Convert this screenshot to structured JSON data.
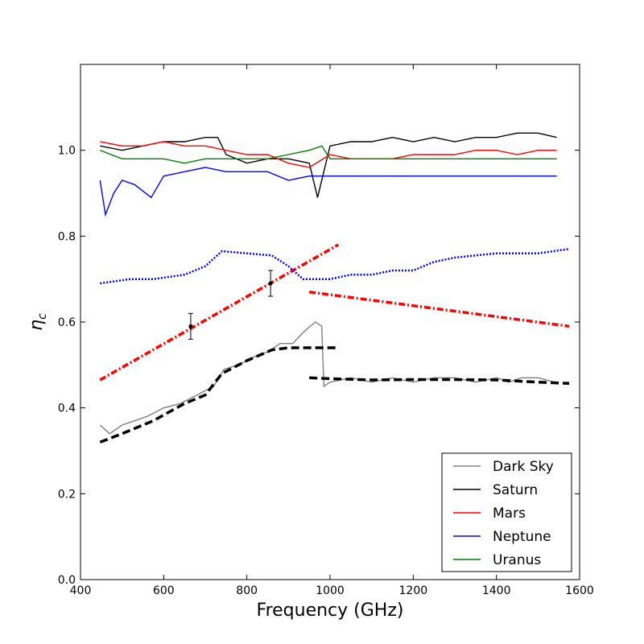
{
  "chart_data": {
    "type": "line",
    "xlabel": "Frequency (GHz)",
    "ylabel": "η_c",
    "xlim": [
      400,
      1600
    ],
    "ylim": [
      0.0,
      1.2
    ],
    "xticks": [
      400,
      600,
      800,
      1000,
      1200,
      1400,
      1600
    ],
    "yticks": [
      0.0,
      0.2,
      0.4,
      0.6,
      0.8,
      1.0
    ],
    "xtick_labels": [
      "400",
      "600",
      "800",
      "1000",
      "1200",
      "1400",
      "1600"
    ],
    "ytick_labels": [
      "0.0",
      "0.2",
      "0.4",
      "0.6",
      "0.8",
      "1.0"
    ],
    "legend_position": "lower-right",
    "series": [
      {
        "name": "Dark Sky",
        "color": "#808080",
        "x": [
          447,
          470,
          500,
          530,
          560,
          600,
          640,
          680,
          720,
          745,
          780,
          820,
          850,
          880,
          910,
          940,
          965,
          980,
          985,
          1000,
          1050,
          1100,
          1150,
          1200,
          1250,
          1300,
          1350,
          1400,
          1430,
          1460,
          1500,
          1540
        ],
        "y": [
          0.36,
          0.34,
          0.36,
          0.37,
          0.38,
          0.4,
          0.41,
          0.43,
          0.45,
          0.49,
          0.5,
          0.52,
          0.53,
          0.55,
          0.55,
          0.58,
          0.6,
          0.59,
          0.45,
          0.46,
          0.47,
          0.46,
          0.47,
          0.46,
          0.47,
          0.47,
          0.46,
          0.47,
          0.46,
          0.47,
          0.47,
          0.46
        ]
      },
      {
        "name": "Saturn",
        "color": "#000000",
        "x": [
          447,
          500,
          550,
          600,
          650,
          700,
          730,
          750,
          800,
          850,
          900,
          950,
          970,
          1000,
          1050,
          1100,
          1150,
          1200,
          1250,
          1300,
          1350,
          1400,
          1450,
          1500,
          1545
        ],
        "y": [
          1.01,
          1.0,
          1.01,
          1.02,
          1.02,
          1.03,
          1.03,
          0.99,
          0.97,
          0.98,
          0.98,
          0.97,
          0.89,
          1.01,
          1.02,
          1.02,
          1.03,
          1.02,
          1.03,
          1.02,
          1.03,
          1.03,
          1.04,
          1.04,
          1.03
        ]
      },
      {
        "name": "Mars",
        "color": "#ff0000",
        "x": [
          447,
          500,
          550,
          600,
          650,
          700,
          750,
          800,
          850,
          900,
          950,
          1000,
          1050,
          1100,
          1150,
          1200,
          1250,
          1300,
          1350,
          1400,
          1450,
          1500,
          1545
        ],
        "y": [
          1.02,
          1.01,
          1.01,
          1.02,
          1.01,
          1.01,
          1.0,
          0.99,
          0.99,
          0.97,
          0.96,
          0.99,
          0.98,
          0.98,
          0.98,
          0.99,
          0.99,
          0.99,
          1.0,
          1.0,
          0.99,
          1.0,
          1.0
        ]
      },
      {
        "name": "Neptune",
        "color": "#0000ff",
        "x": [
          447,
          460,
          480,
          500,
          530,
          570,
          600,
          650,
          700,
          750,
          800,
          850,
          900,
          950,
          1000,
          1050,
          1100,
          1150,
          1200,
          1250,
          1300,
          1350,
          1400,
          1450,
          1500,
          1545
        ],
        "y": [
          0.93,
          0.85,
          0.9,
          0.93,
          0.92,
          0.89,
          0.94,
          0.95,
          0.96,
          0.95,
          0.95,
          0.95,
          0.93,
          0.94,
          0.94,
          0.94,
          0.94,
          0.94,
          0.94,
          0.94,
          0.94,
          0.94,
          0.94,
          0.94,
          0.94,
          0.94
        ]
      },
      {
        "name": "Uranus",
        "color": "#008000",
        "x": [
          447,
          500,
          550,
          600,
          650,
          700,
          750,
          800,
          850,
          900,
          950,
          980,
          1000,
          1050,
          1100,
          1150,
          1200,
          1250,
          1300,
          1350,
          1400,
          1450,
          1500,
          1545
        ],
        "y": [
          1.0,
          0.98,
          0.98,
          0.98,
          0.97,
          0.98,
          0.98,
          0.98,
          0.98,
          0.99,
          1.0,
          1.01,
          0.98,
          0.98,
          0.98,
          0.98,
          0.98,
          0.98,
          0.98,
          0.98,
          0.98,
          0.98,
          0.98,
          0.98
        ]
      }
    ],
    "reference_lines": [
      {
        "color": "#ff0000",
        "style": "dashdot",
        "x": [
          447,
          1020
        ],
        "y": [
          0.465,
          0.78
        ]
      },
      {
        "color": "#ff0000",
        "style": "dashdot",
        "x": [
          950,
          1575
        ],
        "y": [
          0.67,
          0.59
        ]
      },
      {
        "color": "#0000ff",
        "style": "dotted",
        "x": [
          447,
          520,
          575,
          650,
          700,
          740,
          800,
          860,
          900,
          935,
          950,
          1000,
          1050,
          1100,
          1150,
          1200,
          1250,
          1300,
          1350,
          1400,
          1450,
          1500,
          1575
        ],
        "y": [
          0.69,
          0.7,
          0.7,
          0.71,
          0.73,
          0.765,
          0.76,
          0.755,
          0.73,
          0.7,
          0.7,
          0.7,
          0.71,
          0.71,
          0.72,
          0.72,
          0.74,
          0.75,
          0.755,
          0.76,
          0.76,
          0.76,
          0.77
        ]
      },
      {
        "color": "#000000",
        "style": "dashed",
        "x": [
          447,
          500,
          575,
          650,
          700,
          740,
          800,
          860,
          900,
          1020
        ],
        "y": [
          0.32,
          0.34,
          0.37,
          0.41,
          0.43,
          0.48,
          0.51,
          0.535,
          0.54,
          0.54
        ]
      },
      {
        "color": "#000000",
        "style": "dashed",
        "x": [
          950,
          1000,
          1100,
          1200,
          1300,
          1400,
          1500,
          1575
        ],
        "y": [
          0.47,
          0.468,
          0.465,
          0.466,
          0.466,
          0.465,
          0.46,
          0.457
        ]
      }
    ],
    "error_points": [
      {
        "x": 665,
        "y": 0.59,
        "err": 0.03
      },
      {
        "x": 857,
        "y": 0.69,
        "err": 0.03
      }
    ]
  }
}
